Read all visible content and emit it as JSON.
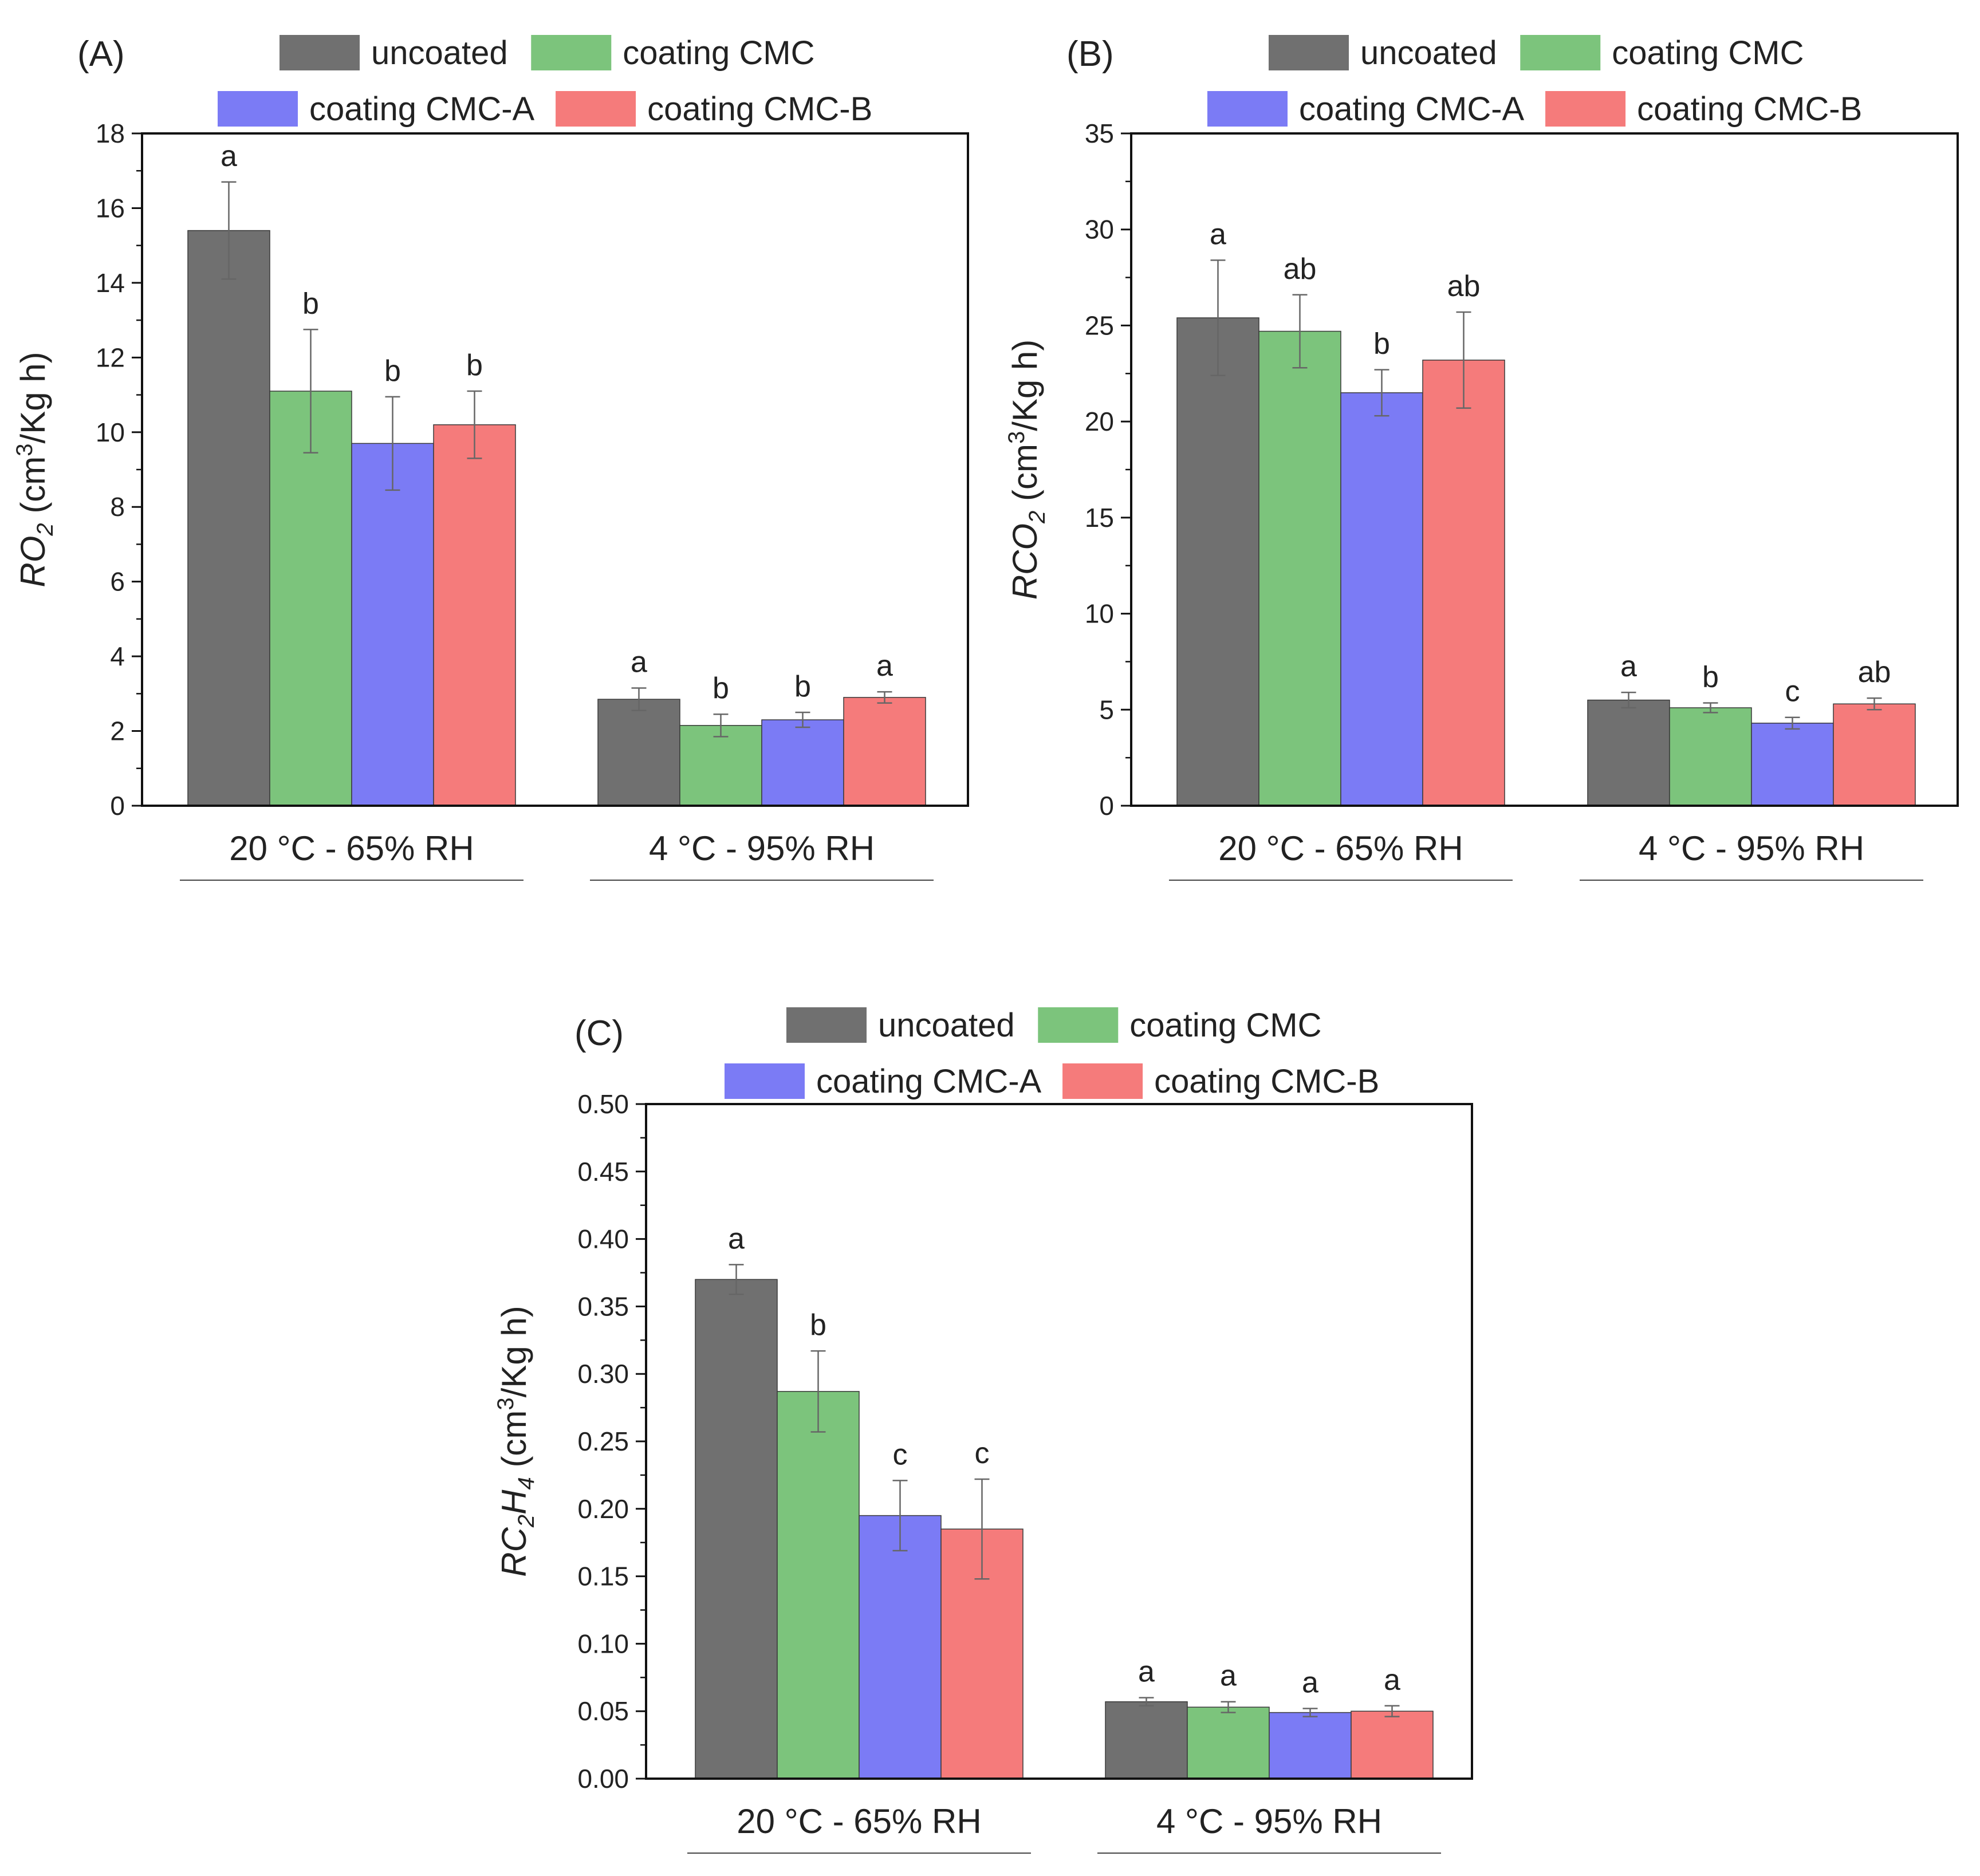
{
  "figure": {
    "colors": {
      "uncoated": "#707070",
      "coating CMC": "#7cc47c",
      "coating CMC-A": "#7b7bf5",
      "coating CMC-B": "#f57b7b",
      "axis": "#111111",
      "error": "#666666"
    }
  },
  "chart_data": [
    {
      "type": "bar",
      "panel_label": "(A)",
      "legend": [
        "uncoated",
        "coating CMC",
        "coating CMC-A",
        "coating CMC-B"
      ],
      "legend_placement": "top",
      "categories": [
        "20 °C - 65% RH",
        "4 °C - 95% RH"
      ],
      "ylabel": {
        "main": "R",
        "sub": "O",
        "subscript": "2",
        "unit_pre": " (cm",
        "unit_sup": "3",
        "unit_post": "/Kg h)"
      },
      "ylim": [
        0,
        18
      ],
      "yticks": [
        0,
        2,
        4,
        6,
        8,
        10,
        12,
        14,
        16,
        18
      ],
      "ytick_labels": [
        "0",
        "2",
        "4",
        "6",
        "8",
        "10",
        "12",
        "14",
        "16",
        "18"
      ],
      "minor_ticks": true,
      "series": [
        {
          "name": "uncoated",
          "values": [
            15.4,
            2.85
          ],
          "errors": [
            1.3,
            0.3
          ],
          "letters": [
            "a",
            "a"
          ]
        },
        {
          "name": "coating CMC",
          "values": [
            11.1,
            2.15
          ],
          "errors": [
            1.65,
            0.3
          ],
          "letters": [
            "b",
            "b"
          ]
        },
        {
          "name": "coating CMC-A",
          "values": [
            9.7,
            2.3
          ],
          "errors": [
            1.25,
            0.2
          ],
          "letters": [
            "b",
            "b"
          ]
        },
        {
          "name": "coating CMC-B",
          "values": [
            10.2,
            2.9
          ],
          "errors": [
            0.9,
            0.15
          ],
          "letters": [
            "b",
            "a"
          ]
        }
      ]
    },
    {
      "type": "bar",
      "panel_label": "(B)",
      "legend": [
        "uncoated",
        "coating CMC",
        "coating CMC-A",
        "coating CMC-B"
      ],
      "legend_placement": "top",
      "categories": [
        "20 °C - 65% RH",
        "4 °C - 95% RH"
      ],
      "ylabel": {
        "main": "R",
        "sub": "CO",
        "subscript": "2",
        "unit_pre": " (cm",
        "unit_sup": "3",
        "unit_post": "/Kg h)"
      },
      "ylim": [
        0,
        35
      ],
      "yticks": [
        0,
        5,
        10,
        15,
        20,
        25,
        30,
        35
      ],
      "ytick_labels": [
        "0",
        "5",
        "10",
        "15",
        "20",
        "25",
        "30",
        "35"
      ],
      "minor_ticks": true,
      "series": [
        {
          "name": "uncoated",
          "values": [
            25.4,
            5.5
          ],
          "errors": [
            3.0,
            0.4
          ],
          "letters": [
            "a",
            "a"
          ]
        },
        {
          "name": "coating CMC",
          "values": [
            24.7,
            5.1
          ],
          "errors": [
            1.9,
            0.25
          ],
          "letters": [
            "ab",
            "b"
          ]
        },
        {
          "name": "coating CMC-A",
          "values": [
            21.5,
            4.3
          ],
          "errors": [
            1.2,
            0.3
          ],
          "letters": [
            "b",
            "c"
          ]
        },
        {
          "name": "coating CMC-B",
          "values": [
            23.2,
            5.3
          ],
          "errors": [
            2.5,
            0.3
          ],
          "letters": [
            "ab",
            "ab"
          ]
        }
      ]
    },
    {
      "type": "bar",
      "panel_label": "(C)",
      "legend": [
        "uncoated",
        "coating CMC",
        "coating CMC-A",
        "coating CMC-B"
      ],
      "legend_placement": "top",
      "categories": [
        "20 °C - 65% RH",
        "4 °C - 95% RH"
      ],
      "ylabel": {
        "main": "R",
        "sub": "C",
        "subscript": "2",
        "sub2": "H",
        "subscript2": "4",
        "unit_pre": " (cm",
        "unit_sup": "3",
        "unit_post": "/Kg h)"
      },
      "ylim": [
        0,
        0.5
      ],
      "yticks": [
        0,
        0.05,
        0.1,
        0.15,
        0.2,
        0.25,
        0.3,
        0.35,
        0.4,
        0.45,
        0.5
      ],
      "ytick_labels": [
        "0.00",
        "0.05",
        "0.10",
        "0.15",
        "0.20",
        "0.25",
        "0.30",
        "0.35",
        "0.40",
        "0.45",
        "0.50"
      ],
      "minor_ticks": true,
      "series": [
        {
          "name": "uncoated",
          "values": [
            0.37,
            0.057
          ],
          "errors": [
            0.011,
            0.003
          ],
          "letters": [
            "a",
            "a"
          ]
        },
        {
          "name": "coating CMC",
          "values": [
            0.287,
            0.053
          ],
          "errors": [
            0.03,
            0.004
          ],
          "letters": [
            "b",
            "a"
          ]
        },
        {
          "name": "coating CMC-A",
          "values": [
            0.195,
            0.049
          ],
          "errors": [
            0.026,
            0.003
          ],
          "letters": [
            "c",
            "a"
          ]
        },
        {
          "name": "coating CMC-B",
          "values": [
            0.185,
            0.05
          ],
          "errors": [
            0.037,
            0.004
          ],
          "letters": [
            "c",
            "a"
          ]
        }
      ]
    }
  ]
}
